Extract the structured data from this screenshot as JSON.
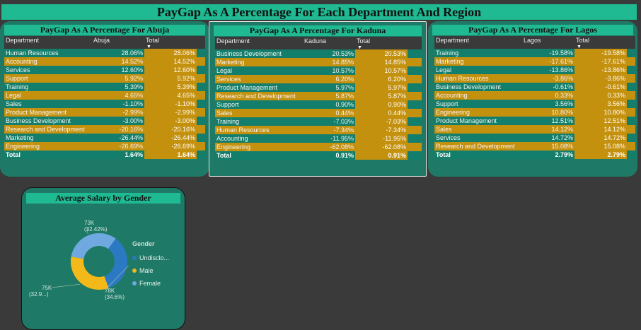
{
  "page_title": "PayGap As A Percentage For Each Department And Region",
  "tables": [
    {
      "title": "PayGap As A Percentage For Abuja",
      "headers": [
        "Department",
        "Abuja",
        "Total"
      ],
      "rows": [
        [
          "Human Resources",
          "28.06%",
          "28.06%"
        ],
        [
          "Accounting",
          "14.52%",
          "14.52%"
        ],
        [
          "Services",
          "12.60%",
          "12.60%"
        ],
        [
          "Support",
          "5.92%",
          "5.92%"
        ],
        [
          "Training",
          "5.39%",
          "5.39%"
        ],
        [
          "Legal",
          "4.65%",
          "4.65%"
        ],
        [
          "Sales",
          "-1.10%",
          "-1.10%"
        ],
        [
          "Product Management",
          "-2.99%",
          "-2.99%"
        ],
        [
          "Business Development",
          "-3.00%",
          "-3.00%"
        ],
        [
          "Research and Development",
          "-20.16%",
          "-20.16%"
        ],
        [
          "Marketing",
          "-26.44%",
          "-26.44%"
        ],
        [
          "Engineering",
          "-26.69%",
          "-26.69%"
        ]
      ],
      "total": [
        "Total",
        "1.64%",
        "1.64%"
      ]
    },
    {
      "title": "PayGap As A Percentage For Kaduna",
      "headers": [
        "Department",
        "Kaduna",
        "Total"
      ],
      "rows": [
        [
          "Business Development",
          "20.53%",
          "20.53%"
        ],
        [
          "Marketing",
          "14.85%",
          "14.85%"
        ],
        [
          "Legal",
          "10.57%",
          "10.57%"
        ],
        [
          "Services",
          "6.20%",
          "6.20%"
        ],
        [
          "Product Management",
          "5.97%",
          "5.97%"
        ],
        [
          "Research and Development",
          "5.87%",
          "5.87%"
        ],
        [
          "Support",
          "0.90%",
          "0.90%"
        ],
        [
          "Sales",
          "0.44%",
          "0.44%"
        ],
        [
          "Training",
          "-7.03%",
          "-7.03%"
        ],
        [
          "Human Resources",
          "-7.34%",
          "-7.34%"
        ],
        [
          "Accounting",
          "-11.95%",
          "-11.95%"
        ],
        [
          "Engineering",
          "-62.08%",
          "-62.08%"
        ]
      ],
      "total": [
        "Total",
        "0.91%",
        "0.91%"
      ]
    },
    {
      "title": "PayGap As A Percentage For Lagos",
      "headers": [
        "Department",
        "Lagos",
        "Total"
      ],
      "rows": [
        [
          "Training",
          "-19.58%",
          "-19.58%"
        ],
        [
          "Marketing",
          "-17.61%",
          "-17.61%"
        ],
        [
          "Legal",
          "-13.86%",
          "-13.86%"
        ],
        [
          "Human Resources",
          "-3.86%",
          "-3.86%"
        ],
        [
          "Business Development",
          "-0.61%",
          "-0.61%"
        ],
        [
          "Accounting",
          "0.33%",
          "0.33%"
        ],
        [
          "Support",
          "3.56%",
          "3.56%"
        ],
        [
          "Engineering",
          "10.80%",
          "10.80%"
        ],
        [
          "Product Management",
          "12.51%",
          "12.51%"
        ],
        [
          "Sales",
          "14.12%",
          "14.12%"
        ],
        [
          "Services",
          "14.72%",
          "14.72%"
        ],
        [
          "Research and Development",
          "15.08%",
          "15.08%"
        ]
      ],
      "total": [
        "Total",
        "2.79%",
        "2.79%"
      ]
    }
  ],
  "chart_data": {
    "type": "pie",
    "title": "Average Salary by Gender",
    "legend_title": "Gender",
    "legend_position": "right",
    "slices": [
      {
        "name": "Undisclo...",
        "value": 78,
        "label": "78K",
        "pct_label": "(34.6%)",
        "color": "#2b79c2"
      },
      {
        "name": "Male",
        "value": 75,
        "label": "75K",
        "pct_label": "(32.9...)",
        "color": "#f2b918"
      },
      {
        "name": "Female",
        "value": 73,
        "label": "73K",
        "pct_label": "(32.42%)",
        "color": "#6fa9e0"
      }
    ]
  },
  "colors": {
    "title_bar": "#1fb992",
    "card_bg": "#1e7a66",
    "row_teal": "#137e6b",
    "row_gold": "#c4910f",
    "page_bg": "#3a3a3a"
  }
}
